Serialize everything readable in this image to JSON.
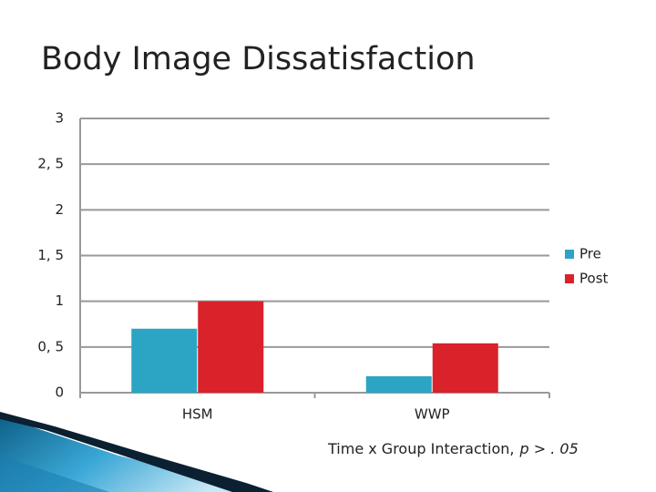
{
  "chart_data": {
    "type": "bar",
    "title": "Body Image Dissatisfaction",
    "categories": [
      "HSM",
      "WWP"
    ],
    "series": [
      {
        "name": "Pre",
        "color": "#2ca5c4",
        "values": [
          0.7,
          0.18
        ]
      },
      {
        "name": "Post",
        "color": "#d9222a",
        "values": [
          1.0,
          0.54
        ]
      }
    ],
    "ylim": [
      0,
      3
    ],
    "yticks": [
      0,
      {
        "value": 0.5,
        "label": "0, 5"
      },
      1,
      {
        "value": 1.5,
        "label": "1, 5"
      },
      2,
      {
        "value": 2.5,
        "label": "2, 5"
      },
      3
    ],
    "grid": true,
    "legend": "right",
    "annotation": [
      "Time x Group Interaction,",
      "p > . 05"
    ]
  }
}
